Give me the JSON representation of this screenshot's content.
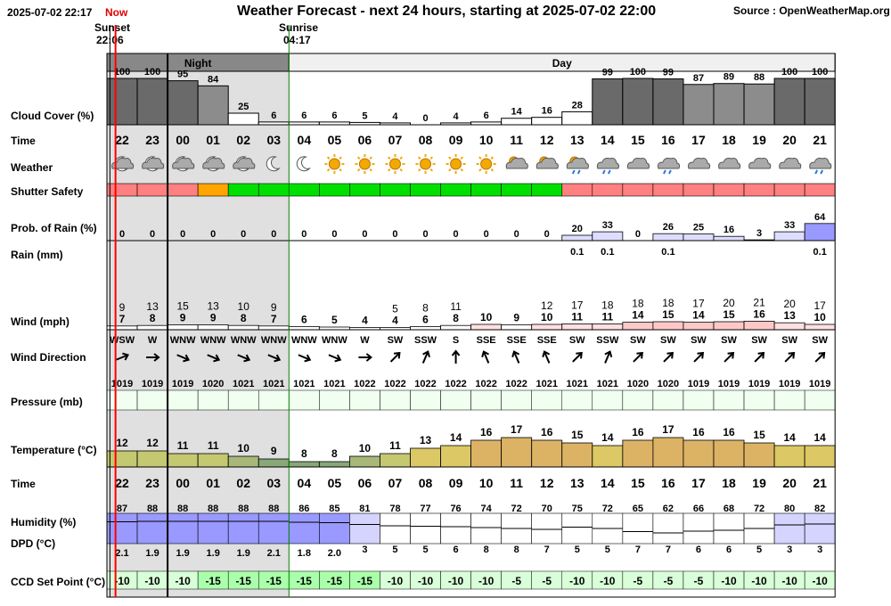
{
  "header": {
    "datetime": "2025-07-02 22:17",
    "now_label": "Now",
    "title": "Weather Forecast - next 24 hours, starting at 2025-07-02 22:00",
    "source": "Source : OpenWeatherMap.org",
    "sunset_label": "Sunset",
    "sunset_time": "22:06",
    "sunrise_label": "Sunrise",
    "sunrise_time": "04:17",
    "night_label": "Night",
    "day_label": "Day"
  },
  "row_labels": {
    "cloud": "Cloud Cover (%)",
    "time": "Time",
    "weather": "Weather",
    "shutter": "Shutter Safety",
    "rain_prob": "Prob. of Rain (%)",
    "rain_mm": "Rain (mm)",
    "wind": "Wind (mph)",
    "wind_dir": "Wind Direction",
    "pressure": "Pressure (mb)",
    "temperature": "Temperature (°C)",
    "time2": "Time",
    "humidity": "Humidity (%)",
    "dpd": "DPD (°C)",
    "ccd": "CCD Set Point (°C)"
  },
  "colors": {
    "now_line": "#ff0000",
    "night_bg": "#e0e0e0",
    "shutter_safe": "#00e000",
    "shutter_caution": "#ffa500",
    "shutter_unsafe": "#ff8080",
    "pressure_fill": "#f0fff0",
    "ccd_fill": "#d8ffd8"
  },
  "chart_data": {
    "type": "table",
    "hours": [
      "22",
      "23",
      "00",
      "01",
      "02",
      "03",
      "04",
      "05",
      "06",
      "07",
      "08",
      "09",
      "10",
      "11",
      "12",
      "13",
      "14",
      "15",
      "16",
      "17",
      "18",
      "19",
      "20",
      "21"
    ],
    "cloud_cover": [
      100,
      100,
      95,
      84,
      25,
      6,
      6,
      6,
      5,
      4,
      0,
      4,
      6,
      14,
      16,
      28,
      99,
      100,
      99,
      87,
      89,
      88,
      100,
      100
    ],
    "weather_icons": [
      "cloud-moon-icon",
      "cloud-moon-icon",
      "cloud-moon-icon",
      "cloud-moon-icon",
      "cloud-moon-icon",
      "moon-icon",
      "moon-icon",
      "sun-icon",
      "sun-icon",
      "sun-icon",
      "sun-icon",
      "sun-icon",
      "sun-icon",
      "sun-cloud-icon",
      "sun-cloud-icon",
      "sun-cloud-rain-icon",
      "cloud-rain-icon",
      "cloud-icon",
      "cloud-rain-icon",
      "cloud-icon",
      "cloud-icon",
      "cloud-icon",
      "cloud-icon",
      "cloud-rain-icon"
    ],
    "shutter_safety": [
      "unsafe",
      "unsafe",
      "unsafe",
      "caution",
      "safe",
      "safe",
      "safe",
      "safe",
      "safe",
      "safe",
      "safe",
      "safe",
      "safe",
      "safe",
      "safe",
      "unsafe",
      "unsafe",
      "unsafe",
      "unsafe",
      "unsafe",
      "unsafe",
      "unsafe",
      "unsafe",
      "unsafe"
    ],
    "rain_probability": [
      0,
      0,
      0,
      0,
      0,
      0,
      0,
      0,
      0,
      0,
      0,
      0,
      0,
      0,
      0,
      20,
      33,
      0,
      26,
      25,
      16,
      3,
      33,
      64
    ],
    "rain_mm": [
      "",
      "",
      "",
      "",
      "",
      "",
      "",
      "",
      "",
      "",
      "",
      "",
      "",
      "",
      "",
      "0.1",
      "0.1",
      "",
      "0.1",
      "",
      "",
      "",
      "",
      "0.1"
    ],
    "wind_gust": [
      9,
      13,
      15,
      13,
      10,
      9,
      null,
      null,
      null,
      5,
      8,
      11,
      null,
      null,
      12,
      17,
      18,
      18,
      18,
      17,
      20,
      21,
      20,
      17
    ],
    "wind_speed": [
      7,
      8,
      9,
      9,
      8,
      7,
      6,
      5,
      4,
      4,
      6,
      8,
      10,
      9,
      10,
      11,
      11,
      14,
      15,
      14,
      15,
      16,
      13,
      10
    ],
    "wind_direction": [
      "WSW",
      "W",
      "WNW",
      "WNW",
      "WNW",
      "WNW",
      "WNW",
      "WNW",
      "W",
      "SW",
      "SSW",
      "S",
      "SSE",
      "SSE",
      "SSE",
      "SW",
      "SSW",
      "SW",
      "SW",
      "SW",
      "SW",
      "SW",
      "SW",
      "SW"
    ],
    "wind_arrow_deg": [
      68,
      90,
      113,
      113,
      113,
      113,
      113,
      113,
      90,
      45,
      23,
      0,
      -23,
      -23,
      -23,
      45,
      23,
      45,
      45,
      45,
      45,
      45,
      45,
      45
    ],
    "pressure": [
      1019,
      1019,
      1019,
      1020,
      1021,
      1021,
      1021,
      1021,
      1022,
      1022,
      1022,
      1022,
      1022,
      1022,
      1021,
      1021,
      1021,
      1020,
      1020,
      1019,
      1019,
      1019,
      1019,
      1019
    ],
    "temperature": [
      12,
      12,
      11,
      11,
      10,
      9,
      8,
      8,
      10,
      11,
      13,
      14,
      16,
      17,
      16,
      15,
      14,
      16,
      17,
      16,
      16,
      15,
      14,
      14
    ],
    "humidity": [
      87,
      88,
      88,
      88,
      88,
      88,
      86,
      85,
      81,
      78,
      77,
      76,
      74,
      72,
      70,
      75,
      72,
      65,
      62,
      66,
      68,
      72,
      80,
      82
    ],
    "dpd": [
      "2.1",
      "1.9",
      "1.9",
      "1.9",
      "1.9",
      "2.1",
      "1.8",
      "2.0",
      "3",
      "5",
      "5",
      "6",
      "8",
      "8",
      "7",
      "5",
      "5",
      "7",
      "7",
      "6",
      "6",
      "5",
      "3",
      "3"
    ],
    "ccd_set_point": [
      -10,
      -10,
      -10,
      -15,
      -15,
      -15,
      -15,
      -15,
      -15,
      -10,
      -10,
      -10,
      -10,
      -5,
      -5,
      -10,
      -10,
      -5,
      -5,
      -5,
      -10,
      -10,
      -10,
      -10
    ],
    "night_hours": [
      "22",
      "23",
      "00",
      "01",
      "02",
      "03"
    ],
    "now_marker": "22:17"
  }
}
